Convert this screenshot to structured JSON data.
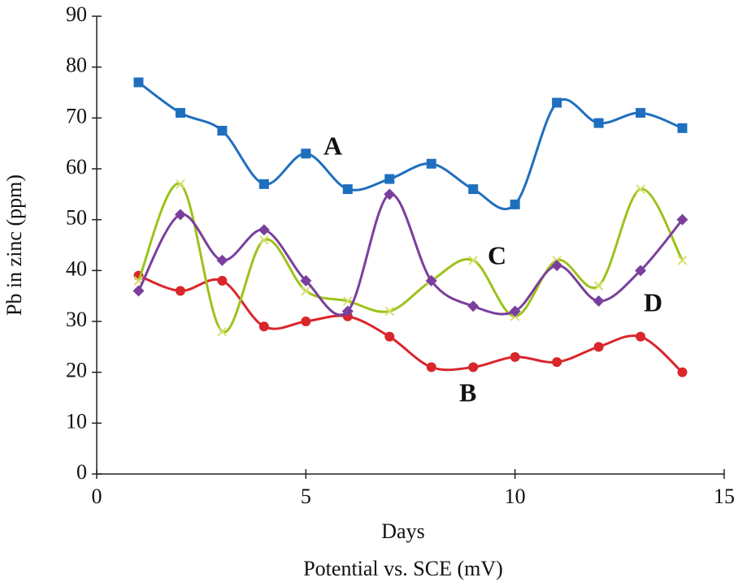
{
  "chart_data": {
    "type": "line",
    "xlabel": "Days",
    "ylabel": "Pb in zinc (ppm)",
    "caption": "Potential vs. SCE (mV)",
    "x": [
      1,
      2,
      3,
      4,
      5,
      6,
      7,
      8,
      9,
      10,
      11,
      12,
      13,
      14
    ],
    "xlim": [
      0,
      15
    ],
    "xticks": [
      0,
      5,
      10,
      15
    ],
    "ylim": [
      0,
      90
    ],
    "yticks": [
      0,
      10,
      20,
      30,
      40,
      50,
      60,
      70,
      80,
      90
    ],
    "grid": false,
    "smooth": true,
    "series": [
      {
        "name": "A",
        "color": "#1f6fbf",
        "marker": "square",
        "values": [
          77,
          71,
          67.5,
          57,
          63,
          56,
          58,
          61,
          56,
          53,
          73,
          69,
          71,
          68
        ]
      },
      {
        "name": "B",
        "color": "#d9262b",
        "marker": "circle",
        "values": [
          39,
          36,
          38,
          29,
          30,
          31,
          27,
          21,
          21,
          23,
          22,
          25,
          27,
          20
        ]
      },
      {
        "name": "C",
        "color": "#9cc31b",
        "marker": "x",
        "values": [
          38,
          57,
          28,
          46,
          36,
          34,
          32,
          38,
          42,
          31,
          42,
          37,
          56,
          42
        ]
      },
      {
        "name": "D",
        "color": "#7a3f9d",
        "marker": "diamond",
        "values": [
          36,
          51,
          42,
          48,
          38,
          32,
          55,
          38,
          33,
          32,
          41,
          34,
          40,
          50
        ]
      }
    ]
  }
}
